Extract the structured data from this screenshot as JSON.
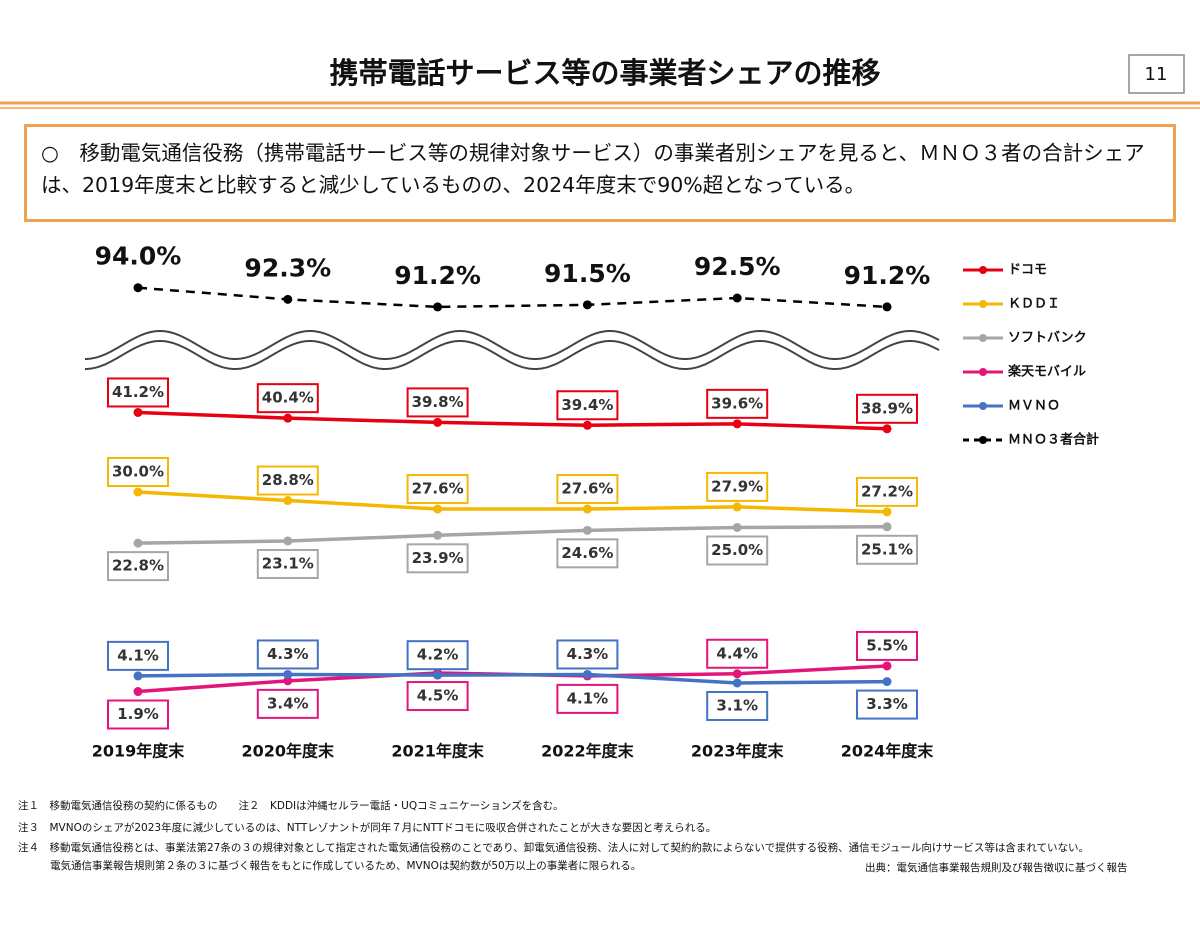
{
  "header": {
    "title": "携帯電話サービス等の事業者シェアの推移",
    "page_number": "11"
  },
  "summary": "○　移動電気通信役務（携帯電話サービス等の規律対象サービス）の事業者別シェアを見ると、ＭＮＯ３者の合計シェアは、2019年度末と比較すると減少しているものの、2024年度末で90%超となっている。",
  "chart_data": {
    "type": "line",
    "categories": [
      "2019年度末",
      "2020年度末",
      "2021年度末",
      "2022年度末",
      "2023年度末",
      "2024年度末"
    ],
    "ylim": [
      0,
      44
    ],
    "y2lim": [
      89,
      96
    ],
    "series": [
      {
        "name": "ドコモ",
        "color": "#e60012",
        "values": [
          41.2,
          40.4,
          39.8,
          39.4,
          39.6,
          38.9
        ],
        "value_labels": [
          "41.2%",
          "40.4%",
          "39.8%",
          "39.4%",
          "39.6%",
          "38.9%"
        ]
      },
      {
        "name": "ＫＤＤＩ",
        "color": "#f5b800",
        "values": [
          30.0,
          28.8,
          27.6,
          27.6,
          27.9,
          27.2
        ],
        "value_labels": [
          "30.0%",
          "28.8%",
          "27.6%",
          "27.6%",
          "27.9%",
          "27.2%"
        ]
      },
      {
        "name": "ソフトバンク",
        "color": "#a6a6a6",
        "values": [
          22.8,
          23.1,
          23.9,
          24.6,
          25.0,
          25.1
        ],
        "value_labels": [
          "22.8%",
          "23.1%",
          "23.9%",
          "24.6%",
          "25.0%",
          "25.1%"
        ]
      },
      {
        "name": "楽天モバイル",
        "color": "#e4157a",
        "values": [
          1.9,
          3.4,
          4.5,
          4.1,
          4.4,
          5.5
        ],
        "value_labels": [
          "1.9%",
          "3.4%",
          "4.5%",
          "4.1%",
          "4.4%",
          "5.5%"
        ]
      },
      {
        "name": "ＭＶＮＯ",
        "color": "#4472c4",
        "values": [
          4.1,
          4.3,
          4.2,
          4.3,
          3.1,
          3.3
        ],
        "value_labels": [
          "4.1%",
          "4.3%",
          "4.2%",
          "4.3%",
          "3.1%",
          "3.3%"
        ]
      },
      {
        "name": "ＭＮＯ３者合計",
        "color": "#000000",
        "axis": "y2",
        "dashed": true,
        "values": [
          94.0,
          92.3,
          91.2,
          91.5,
          92.5,
          91.2
        ],
        "value_labels": [
          "94.0%",
          "92.3%",
          "91.2%",
          "91.5%",
          "92.5%",
          "91.2%"
        ]
      }
    ]
  },
  "notes": [
    "注１　移動電気通信役務の契約に係るもの　　注２　KDDIは沖縄セルラー電話・UQコミュニケーションズを含む。",
    "注３　MVNOのシェアが2023年度に減少しているのは、NTTレゾナントが同年７月にNTTドコモに吸収合併されたことが大きな要因と考えられる。",
    "注４　移動電気通信役務とは、事業法第27条の３の規律対象として指定された電気通信役務のことであり、卸電気通信役務、法人に対して契約約款によらないで提供する役務、通信モジュール向けサービス等は含まれていない。",
    "電気通信事業報告規則第２条の３に基づく報告をもとに作成しているため、MVNOは契約数が50万以上の事業者に限られる。"
  ],
  "source": "出典：電気通信事業報告規則及び報告徴収に基づく報告"
}
